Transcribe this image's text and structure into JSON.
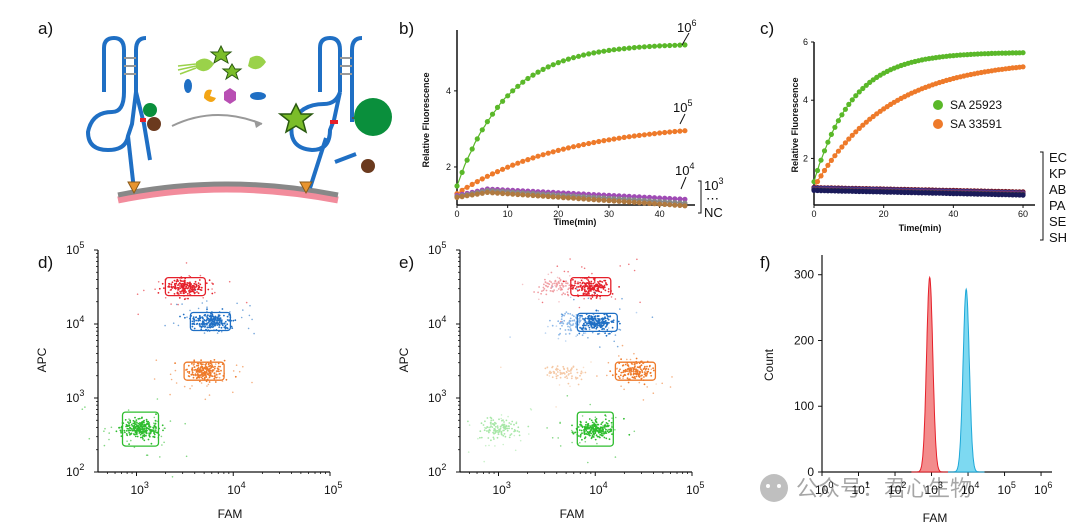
{
  "panels": {
    "a": "a)",
    "b": "b)",
    "c": "c)",
    "d": "d)",
    "e": "e)",
    "f": "f)"
  },
  "watermark": "公众号：君心生物",
  "colors": {
    "green": "#5ab829",
    "orange": "#ee7a2a",
    "purple": "#a04bb5",
    "blue": "#1f6fc4",
    "red": "#e5202a",
    "pink": "#f07b86",
    "cyan": "#35c3e6",
    "darkgreen": "#0a8f3c",
    "navy": "#30308a",
    "maroon": "#7a1520"
  },
  "chart_data": [
    {
      "id": "b",
      "type": "line",
      "title": "",
      "xlabel": "Time(min)",
      "ylabel": "Relative Fluorescence",
      "xlim": [
        0,
        46
      ],
      "ylim": [
        1,
        5.6
      ],
      "xticks": [
        0,
        10,
        20,
        30,
        40
      ],
      "yticks": [
        2,
        4
      ],
      "xtick_labels": [
        "0",
        "10",
        "20",
        "30",
        "40"
      ],
      "ytick_labels": [
        "2",
        "4"
      ],
      "series": [
        {
          "name": "10^6",
          "color": "#5ab829",
          "model": "sat",
          "y0": 1.5,
          "ymax": 5.25,
          "tau": 10
        },
        {
          "name": "10^5",
          "color": "#ee7a2a",
          "model": "sat",
          "y0": 1.3,
          "ymax": 3.2,
          "tau": 22
        },
        {
          "name": "10^4",
          "color": "#a04bb5",
          "model": "hump",
          "y0": 1.25,
          "peak": 1.42,
          "tpk": 6,
          "yend": 1.15
        },
        {
          "name": "10^3",
          "color": "#888888",
          "model": "hump",
          "y0": 1.22,
          "peak": 1.38,
          "tpk": 6,
          "yend": 1.05
        },
        {
          "name": "NC",
          "color": "#b07a40",
          "model": "hump",
          "y0": 1.2,
          "peak": 1.33,
          "tpk": 6,
          "yend": 0.98
        }
      ],
      "annotations": [
        {
          "base": "10",
          "exp": "6"
        },
        {
          "base": "10",
          "exp": "5"
        },
        {
          "base": "10",
          "exp": "4"
        },
        {
          "base": "10",
          "exp": "3"
        },
        {
          "text": "⋯"
        },
        {
          "text": "NC"
        }
      ]
    },
    {
      "id": "c",
      "type": "line",
      "title": "",
      "xlabel": "Time(min)",
      "ylabel": "Relative Fluorescence",
      "xlim": [
        0,
        62
      ],
      "ylim": [
        0.4,
        6
      ],
      "xticks": [
        0,
        20,
        40,
        60
      ],
      "yticks": [
        2,
        4,
        6
      ],
      "xtick_labels": [
        "0",
        "20",
        "40",
        "60"
      ],
      "ytick_labels": [
        "2",
        "4",
        "6"
      ],
      "series": [
        {
          "name": "SA 25923",
          "color": "#5ab829",
          "model": "sat",
          "y0": 1.2,
          "ymax": 5.65,
          "tau": 11
        },
        {
          "name": "SA 33591",
          "color": "#ee7a2a",
          "model": "sat",
          "y0": 1.0,
          "ymax": 5.4,
          "tau": 21
        },
        {
          "name": "EC",
          "color": "#7a1520",
          "model": "flat",
          "y0": 1.0,
          "yend": 0.85
        },
        {
          "name": "KP",
          "color": "#30308a",
          "model": "flat",
          "y0": 0.98,
          "yend": 0.82
        },
        {
          "name": "AB",
          "color": "#5a3a8a",
          "model": "flat",
          "y0": 0.95,
          "yend": 0.8
        },
        {
          "name": "PA",
          "color": "#8a2a6a",
          "model": "flat",
          "y0": 0.93,
          "yend": 0.78
        },
        {
          "name": "SE",
          "color": "#444444",
          "model": "flat",
          "y0": 0.92,
          "yend": 0.76
        },
        {
          "name": "SH",
          "color": "#1a1a5a",
          "model": "flat",
          "y0": 0.9,
          "yend": 0.74
        }
      ],
      "legend": [
        "SA 25923",
        "SA 33591"
      ],
      "side_labels": [
        "EC",
        "KP",
        "AB",
        "PA",
        "SE",
        "SH"
      ]
    },
    {
      "id": "d",
      "type": "scatter",
      "scale": "log",
      "xlabel": "FAM",
      "ylabel": "APC",
      "xlim": [
        400,
        100000
      ],
      "ylim": [
        100,
        100000
      ],
      "xticks": [
        1000,
        10000,
        100000
      ],
      "yticks": [
        100,
        1000,
        10000,
        100000
      ],
      "tick_base": "10",
      "xtick_exps": [
        "3",
        "4",
        "5"
      ],
      "ytick_exps": [
        "2",
        "3",
        "4",
        "5"
      ],
      "clusters": [
        {
          "name": "red",
          "color": "#e5202a",
          "fam": 3200,
          "apc": 32000,
          "n": 180,
          "box": true
        },
        {
          "name": "blue",
          "color": "#1f6fc4",
          "fam": 5800,
          "apc": 10800,
          "n": 220,
          "box": true
        },
        {
          "name": "orange",
          "color": "#ee7a2a",
          "fam": 5000,
          "apc": 2300,
          "n": 200,
          "box": true
        },
        {
          "name": "green",
          "color": "#2ebd2e",
          "fam": 1100,
          "apc": 380,
          "n": 260,
          "box": true
        }
      ]
    },
    {
      "id": "e",
      "type": "scatter",
      "scale": "log",
      "xlabel": "FAM",
      "ylabel": "APC",
      "xlim": [
        400,
        100000
      ],
      "ylim": [
        100,
        100000
      ],
      "xticks": [
        1000,
        10000,
        100000
      ],
      "yticks": [
        100,
        1000,
        10000,
        100000
      ],
      "tick_base": "10",
      "xtick_exps": [
        "3",
        "4",
        "5"
      ],
      "ytick_exps": [
        "2",
        "3",
        "4",
        "5"
      ],
      "clusters": [
        {
          "name": "red-faint",
          "color": "#f0a0a5",
          "fam": 3800,
          "apc": 32000,
          "n": 80,
          "box": false
        },
        {
          "name": "red",
          "color": "#e5202a",
          "fam": 9000,
          "apc": 32000,
          "n": 180,
          "box": true
        },
        {
          "name": "blue-faint",
          "color": "#8db8e8",
          "fam": 6000,
          "apc": 10500,
          "n": 90,
          "box": false
        },
        {
          "name": "blue",
          "color": "#1f6fc4",
          "fam": 10500,
          "apc": 10500,
          "n": 200,
          "box": true
        },
        {
          "name": "orange-faint",
          "color": "#f5c9a6",
          "fam": 4800,
          "apc": 2200,
          "n": 70,
          "box": false
        },
        {
          "name": "orange",
          "color": "#ee7a2a",
          "fam": 26000,
          "apc": 2300,
          "n": 150,
          "box": true
        },
        {
          "name": "green-faint",
          "color": "#a7e7a7",
          "fam": 1000,
          "apc": 380,
          "n": 120,
          "box": false
        },
        {
          "name": "green",
          "color": "#2ebd2e",
          "fam": 10000,
          "apc": 380,
          "n": 230,
          "box": true
        }
      ]
    },
    {
      "id": "f",
      "type": "area",
      "xlabel": "FAM",
      "ylabel": "Count",
      "xlim": [
        0,
        6.3
      ],
      "ylim": [
        0,
        330
      ],
      "yticks": [
        0,
        100,
        200,
        300
      ],
      "ytick_labels": [
        "0",
        "100",
        "200",
        "300"
      ],
      "xticks": [
        0,
        1,
        2,
        3,
        4,
        5,
        6
      ],
      "tick_base": "10",
      "xtick_exps": [
        "0",
        "1",
        "2",
        "3",
        "4",
        "5",
        "6"
      ],
      "series": [
        {
          "name": "red",
          "color": "#e5202a",
          "fill": "#f2807f",
          "center": 2.95,
          "height": 296,
          "width": 0.085
        },
        {
          "name": "cyan",
          "color": "#1ea8d8",
          "fill": "#6fd5ef",
          "center": 3.95,
          "height": 278,
          "width": 0.085
        }
      ]
    }
  ]
}
